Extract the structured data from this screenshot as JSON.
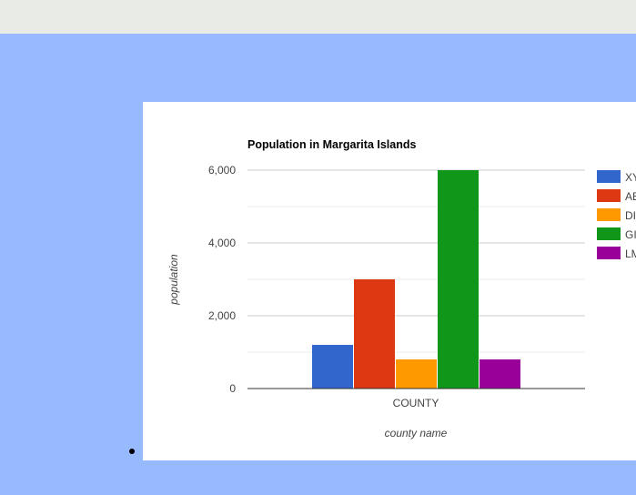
{
  "colors": {
    "page_background": "#97b9fd",
    "top_strip": "#e9ece6",
    "card": "#ffffff"
  },
  "chart_data": {
    "type": "bar",
    "title": "Population in Margarita Islands",
    "xlabel": "county name",
    "ylabel": "population",
    "categories": [
      "COUNTY"
    ],
    "ylim": [
      0,
      6000
    ],
    "yticks": [
      0,
      2000,
      4000,
      6000
    ],
    "ytick_labels": [
      "0",
      "2,000",
      "4,000",
      "6,000"
    ],
    "grid": true,
    "legend_position": "right",
    "series": [
      {
        "name": "XY",
        "values": [
          1200
        ],
        "color": "#3366cc"
      },
      {
        "name": "AB",
        "values": [
          3000
        ],
        "color": "#dc3912"
      },
      {
        "name": "DI",
        "values": [
          800
        ],
        "color": "#ff9900"
      },
      {
        "name": "GI",
        "values": [
          6000
        ],
        "color": "#109618"
      },
      {
        "name": "LM",
        "values": [
          800
        ],
        "color": "#990099"
      }
    ]
  }
}
